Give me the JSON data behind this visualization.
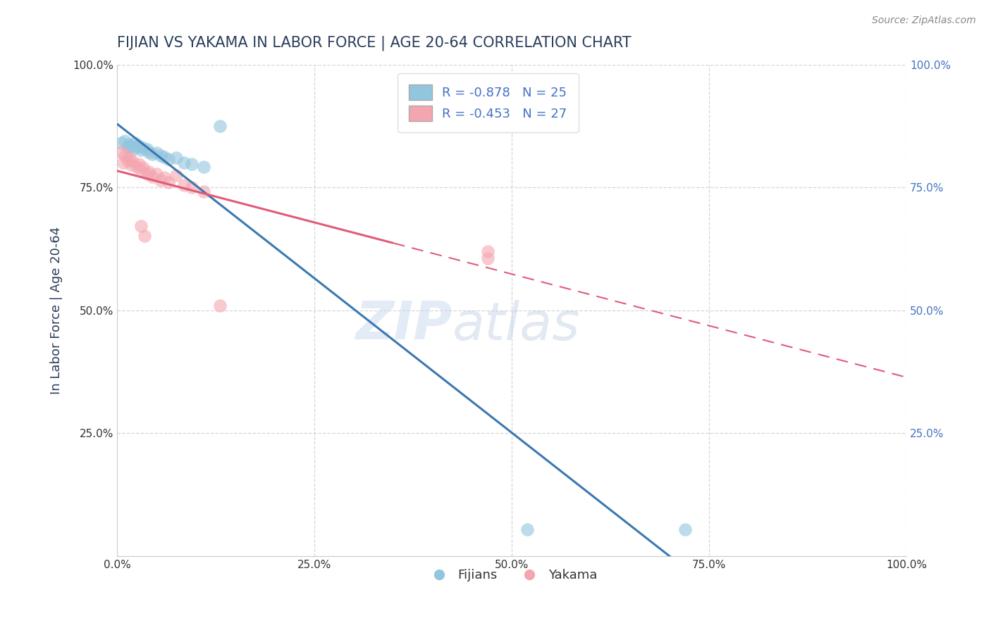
{
  "title": "FIJIAN VS YAKAMA IN LABOR FORCE | AGE 20-64 CORRELATION CHART",
  "source_text": "Source: ZipAtlas.com",
  "ylabel": "In Labor Force | Age 20-64",
  "xlim": [
    0.0,
    1.0
  ],
  "ylim": [
    0.0,
    1.0
  ],
  "x_ticks": [
    0.0,
    0.25,
    0.5,
    0.75,
    1.0
  ],
  "y_ticks": [
    0.0,
    0.25,
    0.5,
    0.75,
    1.0
  ],
  "x_tick_labels": [
    "0.0%",
    "25.0%",
    "50.0%",
    "75.0%",
    "100.0%"
  ],
  "y_tick_labels_left": [
    "",
    "25.0%",
    "50.0%",
    "75.0%",
    "100.0%"
  ],
  "y_tick_labels_right": [
    "",
    "25.0%",
    "50.0%",
    "75.0%",
    "100.0%"
  ],
  "fijian_color": "#92c5de",
  "yakama_color": "#f4a6b0",
  "fijian_line_color": "#3b78b0",
  "yakama_line_color": "#e05c78",
  "fijian_R": -0.878,
  "fijian_N": 25,
  "yakama_R": -0.453,
  "yakama_N": 27,
  "watermark_zip": "ZIP",
  "watermark_atlas": "atlas",
  "fijian_points": [
    [
      0.005,
      0.84
    ],
    [
      0.01,
      0.845
    ],
    [
      0.013,
      0.83
    ],
    [
      0.015,
      0.838
    ],
    [
      0.018,
      0.835
    ],
    [
      0.02,
      0.828
    ],
    [
      0.022,
      0.84
    ],
    [
      0.025,
      0.832
    ],
    [
      0.028,
      0.835
    ],
    [
      0.03,
      0.826
    ],
    [
      0.033,
      0.83
    ],
    [
      0.038,
      0.828
    ],
    [
      0.04,
      0.822
    ],
    [
      0.045,
      0.818
    ],
    [
      0.05,
      0.82
    ],
    [
      0.055,
      0.815
    ],
    [
      0.06,
      0.812
    ],
    [
      0.065,
      0.808
    ],
    [
      0.075,
      0.81
    ],
    [
      0.085,
      0.8
    ],
    [
      0.095,
      0.798
    ],
    [
      0.11,
      0.792
    ],
    [
      0.13,
      0.875
    ],
    [
      0.52,
      0.055
    ],
    [
      0.72,
      0.055
    ]
  ],
  "yakama_points": [
    [
      0.005,
      0.822
    ],
    [
      0.008,
      0.8
    ],
    [
      0.01,
      0.815
    ],
    [
      0.013,
      0.805
    ],
    [
      0.015,
      0.81
    ],
    [
      0.018,
      0.796
    ],
    [
      0.02,
      0.804
    ],
    [
      0.025,
      0.792
    ],
    [
      0.028,
      0.798
    ],
    [
      0.03,
      0.784
    ],
    [
      0.033,
      0.79
    ],
    [
      0.038,
      0.778
    ],
    [
      0.04,
      0.782
    ],
    [
      0.045,
      0.772
    ],
    [
      0.05,
      0.778
    ],
    [
      0.055,
      0.765
    ],
    [
      0.06,
      0.77
    ],
    [
      0.065,
      0.76
    ],
    [
      0.075,
      0.774
    ],
    [
      0.085,
      0.755
    ],
    [
      0.095,
      0.75
    ],
    [
      0.11,
      0.742
    ],
    [
      0.03,
      0.672
    ],
    [
      0.035,
      0.652
    ],
    [
      0.47,
      0.62
    ],
    [
      0.47,
      0.605
    ],
    [
      0.13,
      0.51
    ]
  ],
  "grid_color": "#cccccc",
  "background_color": "#ffffff",
  "title_color": "#2c3e5c",
  "title_fontsize": 15,
  "axis_label_color": "#2c3e5c",
  "tick_color_x": "#333333",
  "tick_color_y_left": "#333333",
  "tick_color_y_right": "#4472c4",
  "legend_labels": [
    "Fijians",
    "Yakama"
  ]
}
